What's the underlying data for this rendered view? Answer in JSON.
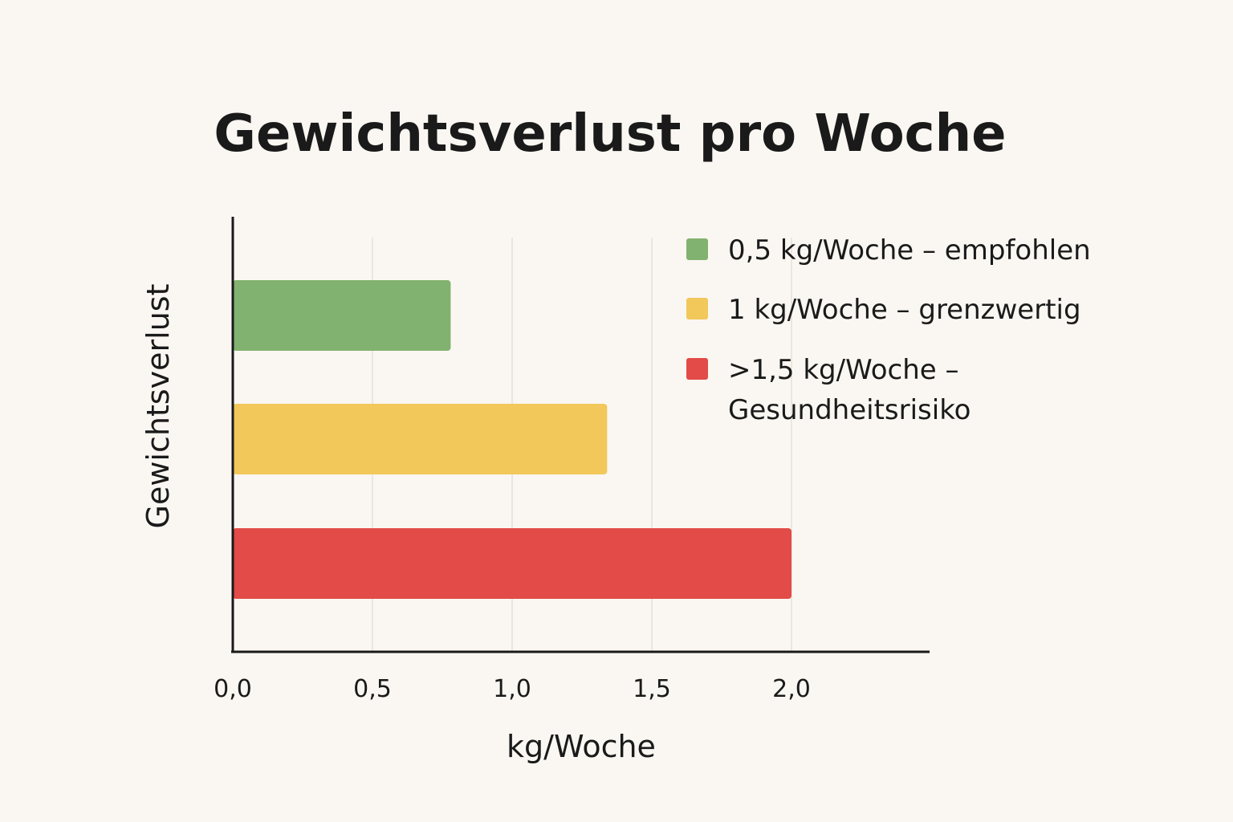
{
  "chart_data": {
    "type": "bar",
    "orientation": "horizontal",
    "title": "Gewichtsverlust pro Woche",
    "xlabel": "kg/Woche",
    "ylabel": "Gewichtsverlust",
    "xlim": [
      0,
      2.5
    ],
    "xticks": [
      0,
      0.5,
      1.0,
      1.5,
      2.0
    ],
    "xtick_labels": [
      "0,0",
      "0,5",
      "1,0",
      "1,5",
      "2,0"
    ],
    "grid": true,
    "legend_position": "top-right",
    "bars": [
      {
        "value": 0.78,
        "color": "#82b26f"
      },
      {
        "value": 1.34,
        "color": "#f2c85b"
      },
      {
        "value": 2.0,
        "color": "#e24b47"
      }
    ],
    "legend": [
      {
        "lines": [
          "0,5 kg/Woche – empfohlen"
        ],
        "color": "#82b26f"
      },
      {
        "lines": [
          "1 kg/Woche – grenzwertig"
        ],
        "color": "#f2c85b"
      },
      {
        "lines": [
          ">1,5 kg/Woche –",
          "Gesundheitsrisiko"
        ],
        "color": "#e24b47"
      }
    ]
  }
}
